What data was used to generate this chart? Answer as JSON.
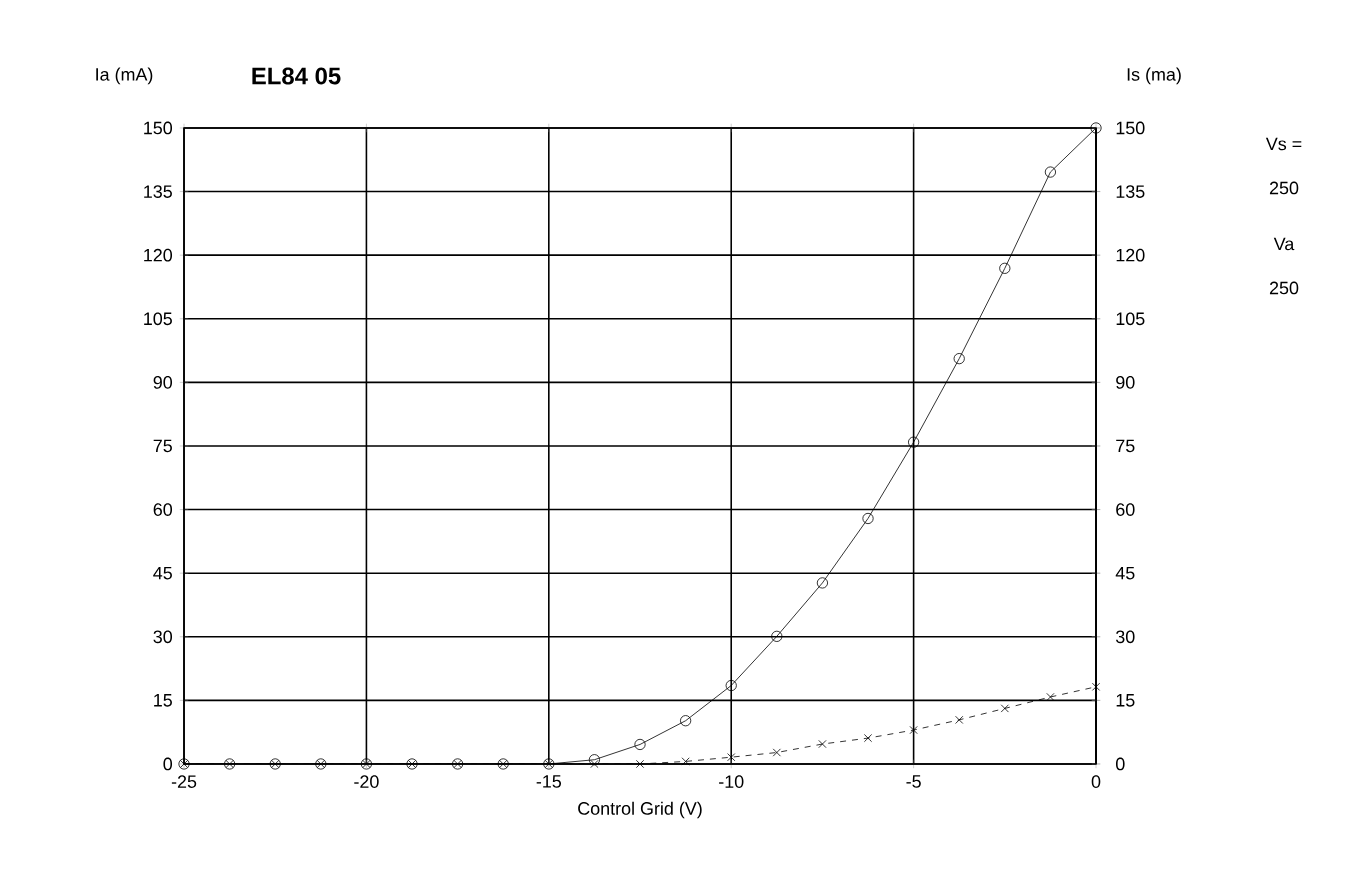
{
  "chart_data": {
    "type": "line",
    "title": "EL84 05",
    "xlabel": "Control Grid (V)",
    "ylabel": "Ia (mA)",
    "y2label": "Is (ma)",
    "x": [
      -25,
      -23.75,
      -22.5,
      -21.25,
      -20,
      -18.75,
      -17.5,
      -16.25,
      -15,
      -13.75,
      -12.5,
      -11.25,
      -10,
      -8.75,
      -7.5,
      -6.25,
      -5,
      -3.75,
      -2.5,
      -1.25,
      0
    ],
    "series": [
      {
        "color": "#000000",
        "marker": "circle",
        "line_style": "solid",
        "values": [
          0,
          0,
          0,
          0,
          0,
          0,
          0,
          0,
          0,
          1.0,
          4.6,
          10.2,
          18.5,
          30.1,
          42.7,
          57.9,
          75.9,
          95.6,
          116.9,
          139.6,
          150
        ]
      },
      {
        "color": "#000000",
        "marker": "cross",
        "line_style": "dashed",
        "axis": "y2",
        "values": [
          0,
          0,
          0,
          0,
          0,
          0,
          0,
          0,
          0,
          0,
          0,
          0.6,
          1.6,
          2.7,
          4.7,
          6.1,
          8.0,
          10.4,
          13.1,
          15.8,
          18.2
        ]
      }
    ],
    "xlim": [
      -25,
      0
    ],
    "xticks": [
      -25,
      -20,
      -15,
      -10,
      -5,
      0
    ],
    "ylim": [
      0,
      150
    ],
    "yticks": [
      0,
      15,
      30,
      45,
      60,
      75,
      90,
      105,
      120,
      135,
      150
    ],
    "y2lim": [
      0,
      150
    ],
    "y2ticks": [
      0,
      15,
      30,
      45,
      60,
      75,
      90,
      105,
      120,
      135,
      150
    ],
    "grid": true,
    "legend": false,
    "annotations": [
      "Vs =",
      "250",
      "Va",
      "250"
    ]
  }
}
